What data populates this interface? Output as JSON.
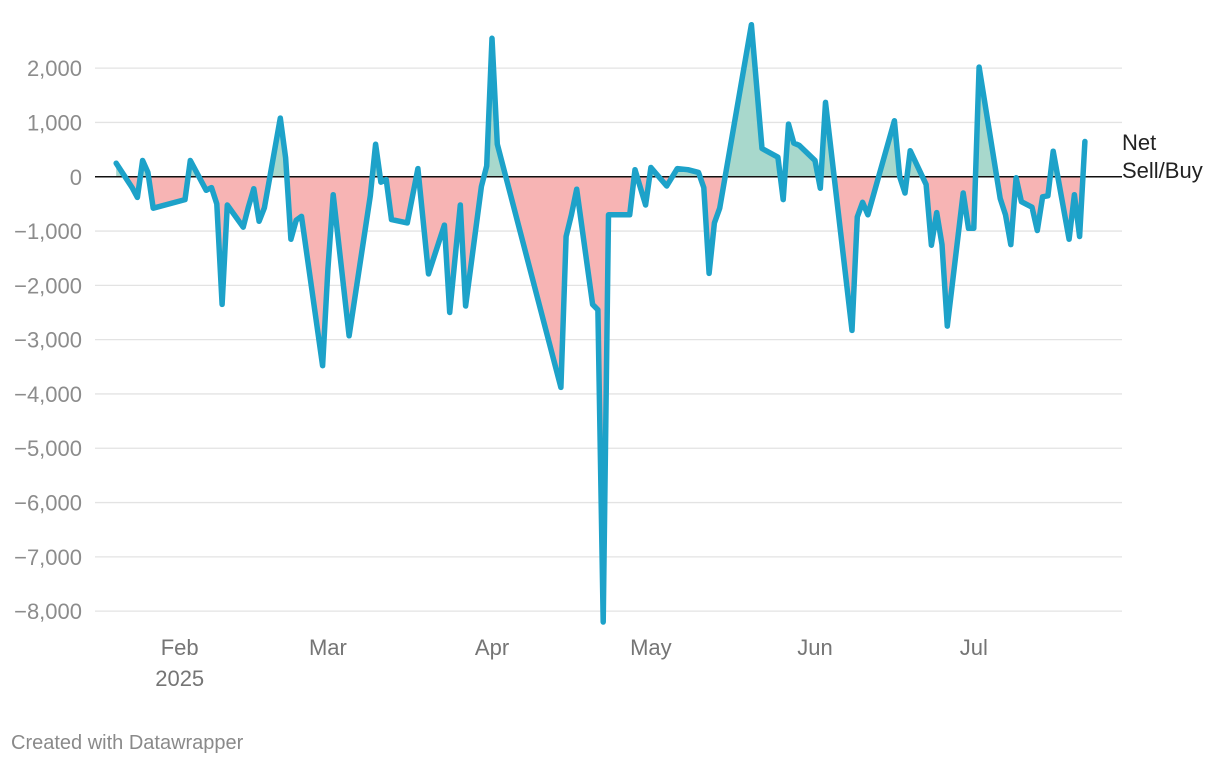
{
  "chart_data": {
    "type": "area",
    "title": "",
    "xlabel": "",
    "ylabel": "",
    "series_label_lines": [
      "Net",
      "Sell/Buy"
    ],
    "ylim": [
      -8200,
      2850
    ],
    "yticks": [
      2000,
      1000,
      0,
      -1000,
      -2000,
      -3000,
      -4000,
      -5000,
      -6000,
      -7000,
      -8000
    ],
    "ytick_labels": [
      "2,000",
      "1,000",
      "0",
      "−1,000",
      "−2,000",
      "−3,000",
      "−4,000",
      "−5,000",
      "−6,000",
      "−7,000",
      "−8,000"
    ],
    "xlim": [
      "2025-01-16",
      "2025-07-29"
    ],
    "xticks": [
      {
        "date": "2025-02-01",
        "label": "Feb",
        "sub": "2025"
      },
      {
        "date": "2025-03-01",
        "label": "Mar",
        "sub": ""
      },
      {
        "date": "2025-04-01",
        "label": "Apr",
        "sub": ""
      },
      {
        "date": "2025-05-01",
        "label": "May",
        "sub": ""
      },
      {
        "date": "2025-06-01",
        "label": "Jun",
        "sub": ""
      },
      {
        "date": "2025-07-01",
        "label": "Jul",
        "sub": ""
      }
    ],
    "colors": {
      "line": "#1da2c9",
      "positive_fill": "#a8d8cc",
      "negative_fill": "#f7b4b4"
    },
    "grid": true,
    "points": [
      [
        "2025-01-20",
        250
      ],
      [
        "2025-01-23",
        -200
      ],
      [
        "2025-01-24",
        -380
      ],
      [
        "2025-01-25",
        300
      ],
      [
        "2025-01-26",
        80
      ],
      [
        "2025-01-27",
        -580
      ],
      [
        "2025-02-02",
        -420
      ],
      [
        "2025-02-03",
        300
      ],
      [
        "2025-02-06",
        -250
      ],
      [
        "2025-02-07",
        -200
      ],
      [
        "2025-02-08",
        -500
      ],
      [
        "2025-02-09",
        -2350
      ],
      [
        "2025-02-10",
        -520
      ],
      [
        "2025-02-13",
        -930
      ],
      [
        "2025-02-14",
        -550
      ],
      [
        "2025-02-15",
        -220
      ],
      [
        "2025-02-16",
        -820
      ],
      [
        "2025-02-17",
        -570
      ],
      [
        "2025-02-20",
        1080
      ],
      [
        "2025-02-21",
        350
      ],
      [
        "2025-02-22",
        -1150
      ],
      [
        "2025-02-23",
        -800
      ],
      [
        "2025-02-24",
        -730
      ],
      [
        "2025-02-28",
        -3480
      ],
      [
        "2025-03-01",
        -1700
      ],
      [
        "2025-03-02",
        -330
      ],
      [
        "2025-03-05",
        -2930
      ],
      [
        "2025-03-09",
        -350
      ],
      [
        "2025-03-10",
        600
      ],
      [
        "2025-03-11",
        -100
      ],
      [
        "2025-03-12",
        -50
      ],
      [
        "2025-03-13",
        -790
      ],
      [
        "2025-03-16",
        -850
      ],
      [
        "2025-03-18",
        150
      ],
      [
        "2025-03-20",
        -1790
      ],
      [
        "2025-03-23",
        -890
      ],
      [
        "2025-03-24",
        -2500
      ],
      [
        "2025-03-26",
        -520
      ],
      [
        "2025-03-27",
        -2380
      ],
      [
        "2025-03-30",
        -180
      ],
      [
        "2025-03-31",
        200
      ],
      [
        "2025-04-01",
        2550
      ],
      [
        "2025-04-02",
        600
      ],
      [
        "2025-04-14",
        -3880
      ],
      [
        "2025-04-15",
        -1100
      ],
      [
        "2025-04-16",
        -700
      ],
      [
        "2025-04-17",
        -230
      ],
      [
        "2025-04-20",
        -2350
      ],
      [
        "2025-04-21",
        -2450
      ],
      [
        "2025-04-22",
        -8200
      ],
      [
        "2025-04-23",
        -700
      ],
      [
        "2025-04-27",
        -700
      ],
      [
        "2025-04-28",
        130
      ],
      [
        "2025-04-30",
        -520
      ],
      [
        "2025-05-01",
        170
      ],
      [
        "2025-05-04",
        -170
      ],
      [
        "2025-05-06",
        150
      ],
      [
        "2025-05-08",
        130
      ],
      [
        "2025-05-10",
        80
      ],
      [
        "2025-05-11",
        -200
      ],
      [
        "2025-05-12",
        -1780
      ],
      [
        "2025-05-13",
        -850
      ],
      [
        "2025-05-14",
        -580
      ],
      [
        "2025-05-20",
        2800
      ],
      [
        "2025-05-22",
        520
      ],
      [
        "2025-05-25",
        360
      ],
      [
        "2025-05-26",
        -420
      ],
      [
        "2025-05-27",
        970
      ],
      [
        "2025-05-28",
        620
      ],
      [
        "2025-05-29",
        580
      ],
      [
        "2025-06-01",
        300
      ],
      [
        "2025-06-02",
        -210
      ],
      [
        "2025-06-03",
        1370
      ],
      [
        "2025-06-08",
        -2830
      ],
      [
        "2025-06-09",
        -740
      ],
      [
        "2025-06-10",
        -470
      ],
      [
        "2025-06-11",
        -700
      ],
      [
        "2025-06-16",
        1030
      ],
      [
        "2025-06-17",
        0
      ],
      [
        "2025-06-18",
        -300
      ],
      [
        "2025-06-19",
        480
      ],
      [
        "2025-06-22",
        -140
      ],
      [
        "2025-06-23",
        -1260
      ],
      [
        "2025-06-24",
        -660
      ],
      [
        "2025-06-25",
        -1250
      ],
      [
        "2025-06-26",
        -2750
      ],
      [
        "2025-06-29",
        -300
      ],
      [
        "2025-06-30",
        -950
      ],
      [
        "2025-07-01",
        -950
      ],
      [
        "2025-07-02",
        2020
      ],
      [
        "2025-07-06",
        -400
      ],
      [
        "2025-07-07",
        -700
      ],
      [
        "2025-07-08",
        -1250
      ],
      [
        "2025-07-09",
        -20
      ],
      [
        "2025-07-10",
        -460
      ],
      [
        "2025-07-12",
        -560
      ],
      [
        "2025-07-13",
        -990
      ],
      [
        "2025-07-14",
        -370
      ],
      [
        "2025-07-15",
        -350
      ],
      [
        "2025-07-16",
        470
      ],
      [
        "2025-07-19",
        -1150
      ],
      [
        "2025-07-20",
        -330
      ],
      [
        "2025-07-21",
        -1100
      ],
      [
        "2025-07-22",
        650
      ]
    ]
  },
  "footer": {
    "credit": "Created with Datawrapper"
  }
}
